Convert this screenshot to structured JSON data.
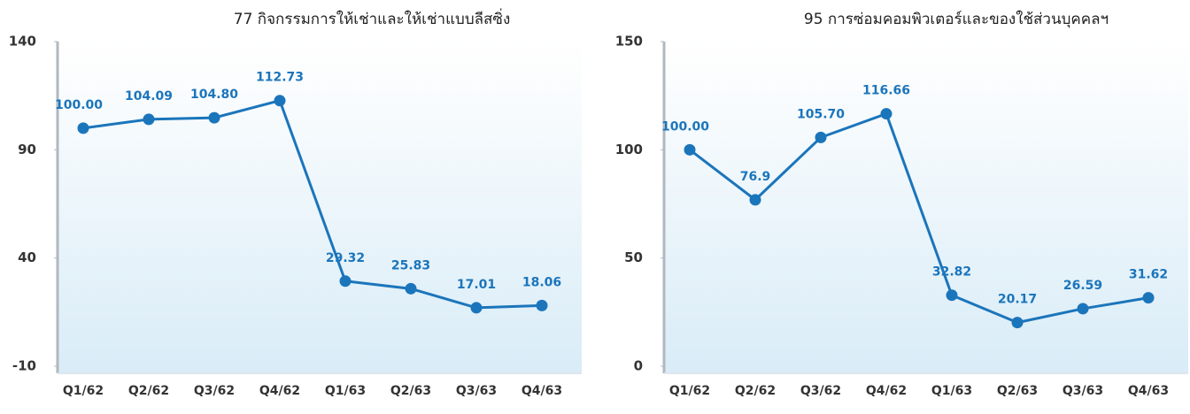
{
  "chart_data": [
    {
      "type": "line",
      "title": "77 กิจกรรมการให้เช่าและให้เช่าแบบลีสซิ่ง",
      "categories": [
        "Q1/62",
        "Q2/62",
        "Q3/62",
        "Q4/62",
        "Q1/63",
        "Q2/63",
        "Q3/63",
        "Q4/63"
      ],
      "values": [
        100,
        104.09,
        104.8,
        112.73,
        29.32,
        25.83,
        17.01,
        18.06
      ],
      "value_labels": [
        "100.00",
        "104.09",
        "104.80",
        "112.73",
        "29.32",
        "25.83",
        "17.01",
        "18.06"
      ],
      "color": "#1b75bb",
      "ylim": [
        -10,
        140
      ],
      "yticks": [
        -10,
        40,
        90,
        140
      ]
    },
    {
      "type": "line",
      "title": "95 การซ่อมคอมพิวเตอร์และของใช้ส่วนบุคคลฯ",
      "categories": [
        "Q1/62",
        "Q2/62",
        "Q3/62",
        "Q4/62",
        "Q1/63",
        "Q2/63",
        "Q3/63",
        "Q4/63"
      ],
      "values": [
        100,
        76.9,
        105.7,
        116.66,
        32.82,
        20.17,
        26.59,
        31.62
      ],
      "value_labels": [
        "100.00",
        "76.9",
        "105.70",
        "116.66",
        "32.82",
        "20.17",
        "26.59",
        "31.62"
      ],
      "color": "#1b75bb",
      "ylim": [
        0,
        150
      ],
      "yticks": [
        0,
        50,
        100,
        150
      ]
    }
  ]
}
